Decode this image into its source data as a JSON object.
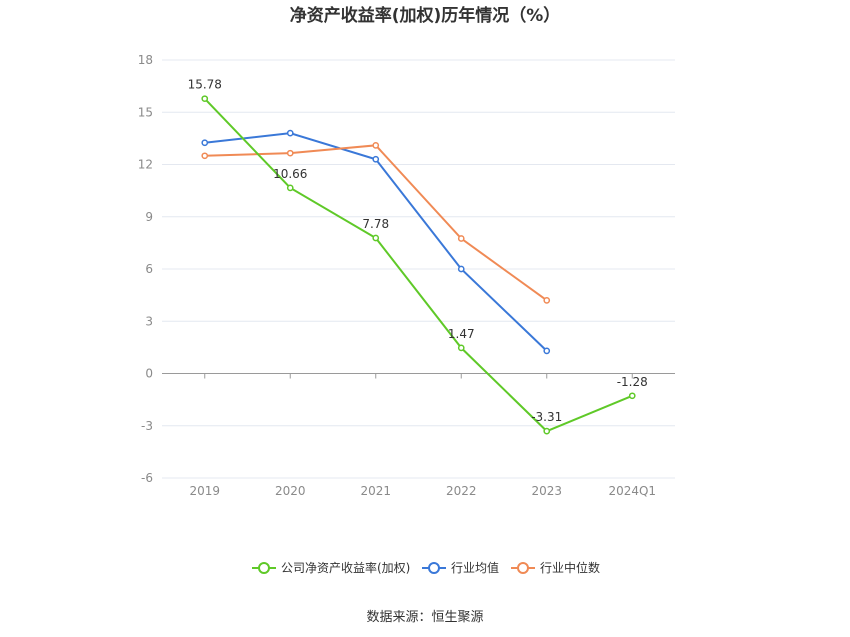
{
  "chart_data": {
    "type": "line",
    "title": "净资产收益率(加权)历年情况（%）",
    "categories": [
      "2019",
      "2020",
      "2021",
      "2022",
      "2023",
      "2024Q1"
    ],
    "y_ticks": [
      "18",
      "15",
      "12",
      "9",
      "6",
      "3",
      "0",
      "-3",
      "-6"
    ],
    "ylim": [
      -6,
      18
    ],
    "grid": true,
    "legend_position": "bottom",
    "series": [
      {
        "name": "公司净资产收益率(加权)",
        "color": "#5fc928",
        "values": [
          15.78,
          10.66,
          7.78,
          1.47,
          -3.31,
          -1.28
        ],
        "labels": [
          "15.78",
          "10.66",
          "7.78",
          "1.47",
          "-3.31",
          "-1.28"
        ]
      },
      {
        "name": "行业均值",
        "color": "#3a78d8",
        "values": [
          13.25,
          13.8,
          12.3,
          6.0,
          1.3,
          null
        ]
      },
      {
        "name": "行业中位数",
        "color": "#f08a55",
        "values": [
          12.5,
          12.65,
          13.1,
          7.75,
          4.2,
          null
        ]
      }
    ]
  },
  "footer": {
    "source": "数据来源：恒生聚源"
  }
}
